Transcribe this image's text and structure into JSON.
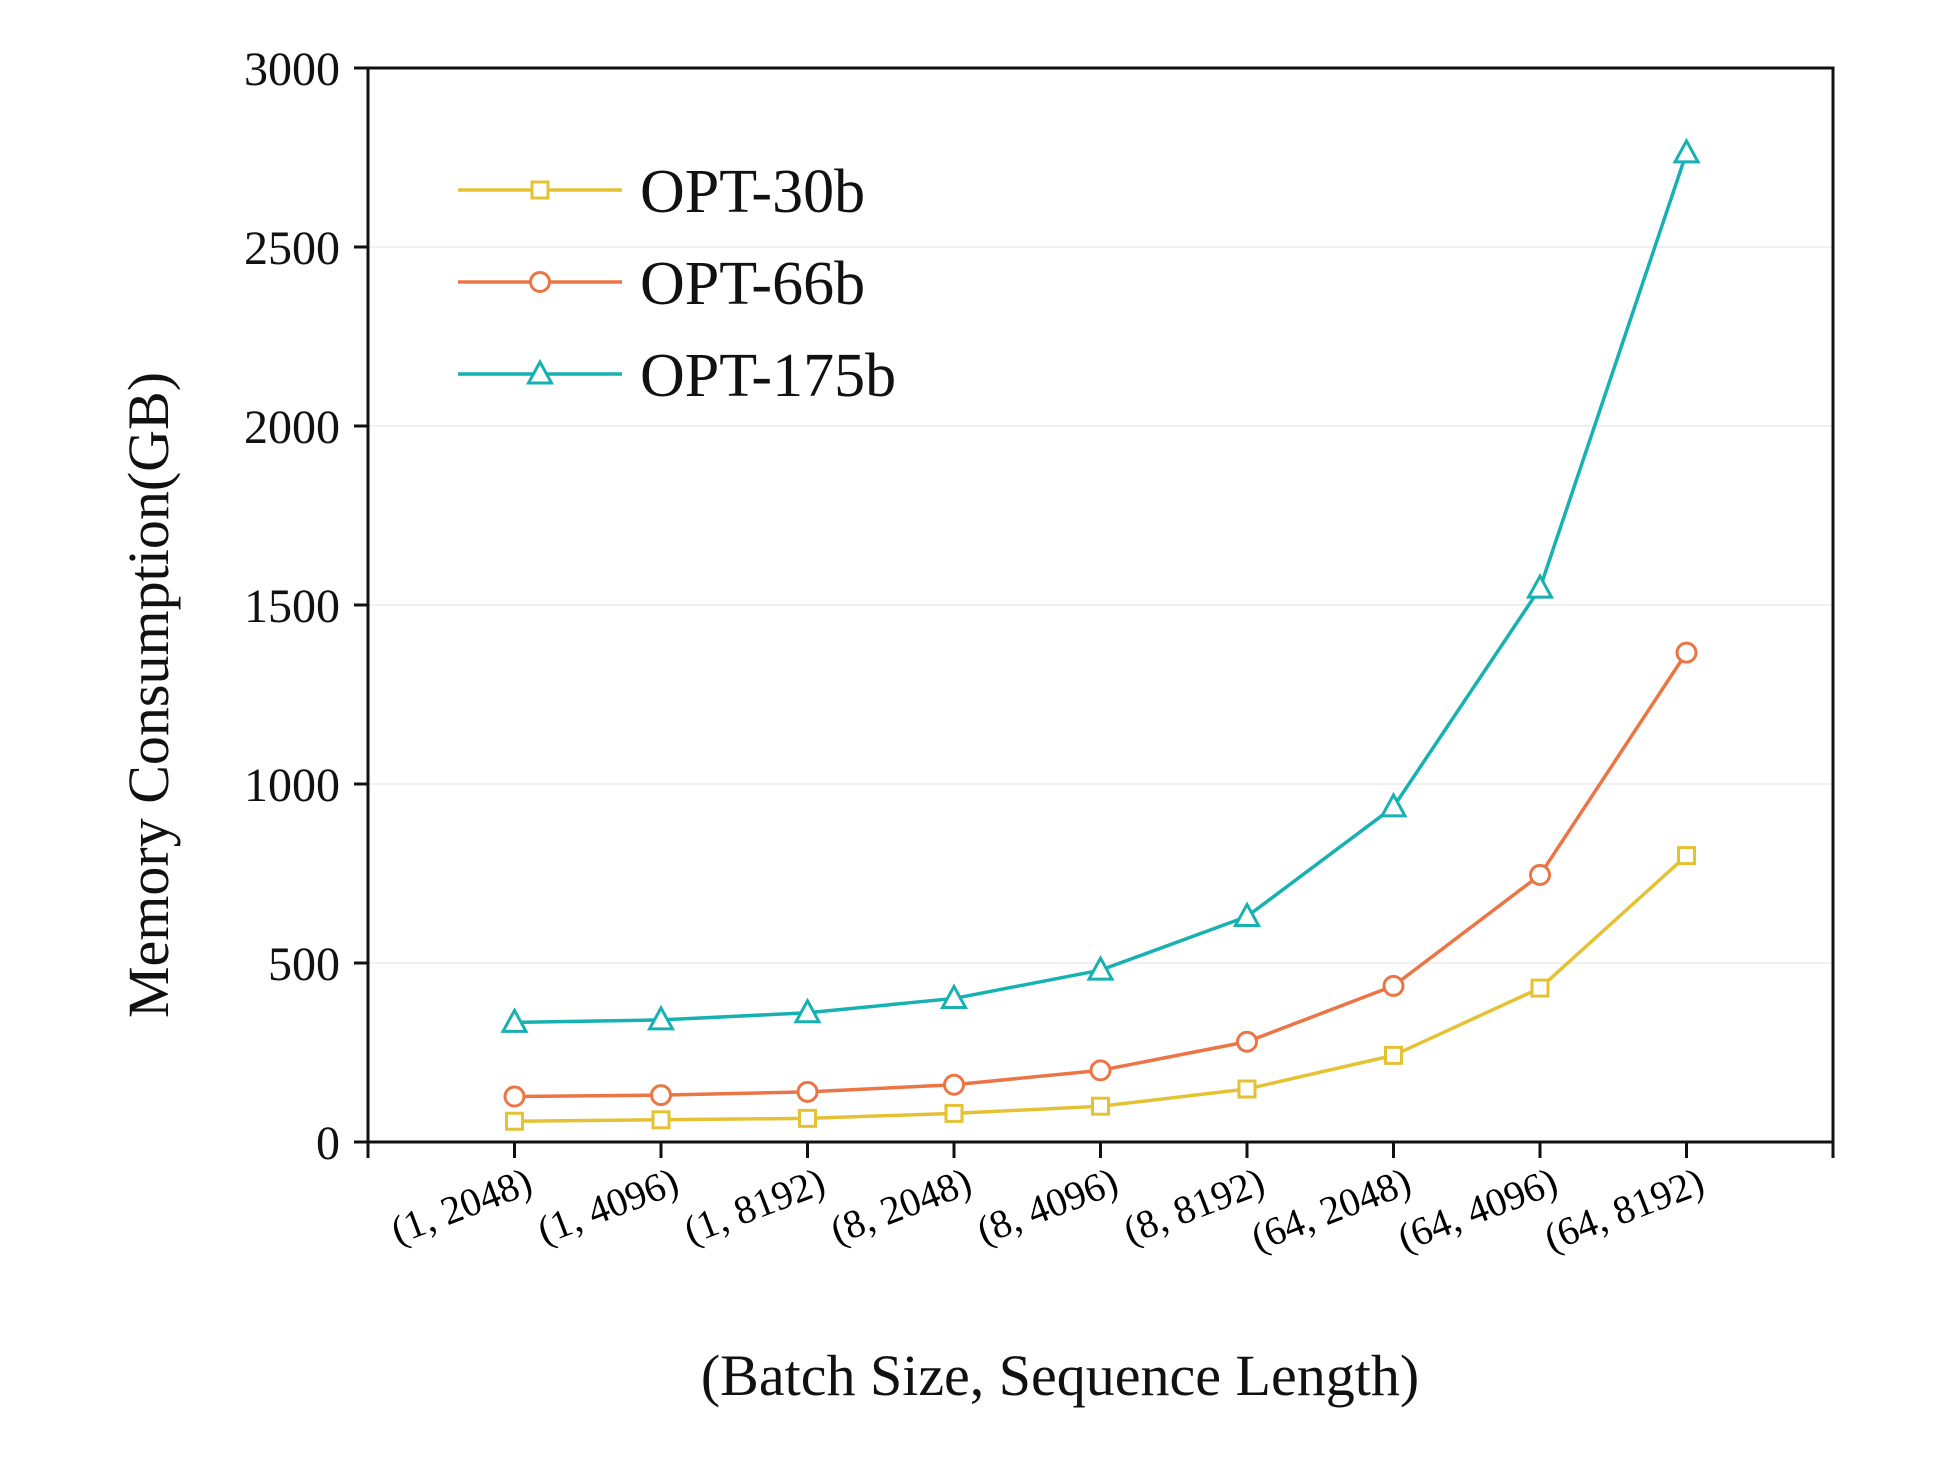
{
  "chart_data": {
    "type": "line",
    "title": "",
    "xlabel": "(Batch Size, Sequence Length)",
    "ylabel": "Memory Consumption(GB)",
    "ylim": [
      0,
      3000
    ],
    "yticks": [
      0,
      500,
      1000,
      1500,
      2000,
      2500,
      3000
    ],
    "grid": true,
    "legend_position": "top-left",
    "categories": [
      "(1, 2048)",
      "(1, 4096)",
      "(1, 8192)",
      "(8, 2048)",
      "(8, 4096)",
      "(8, 8192)",
      "(64, 2048)",
      "(64, 4096)",
      "(64, 8192)"
    ],
    "series": [
      {
        "name": "OPT-30b",
        "marker": "square",
        "color": "#E5C234",
        "values": [
          58,
          62,
          66,
          80,
          100,
          148,
          242,
          430,
          800
        ]
      },
      {
        "name": "OPT-66b",
        "marker": "circle",
        "color": "#EB7545",
        "values": [
          127,
          131,
          140,
          160,
          200,
          280,
          436,
          746,
          1367
        ]
      },
      {
        "name": "OPT-175b",
        "marker": "triangle",
        "color": "#17B1B2",
        "values": [
          334,
          341,
          361,
          401,
          480,
          630,
          936,
          1547,
          2763
        ]
      }
    ]
  }
}
